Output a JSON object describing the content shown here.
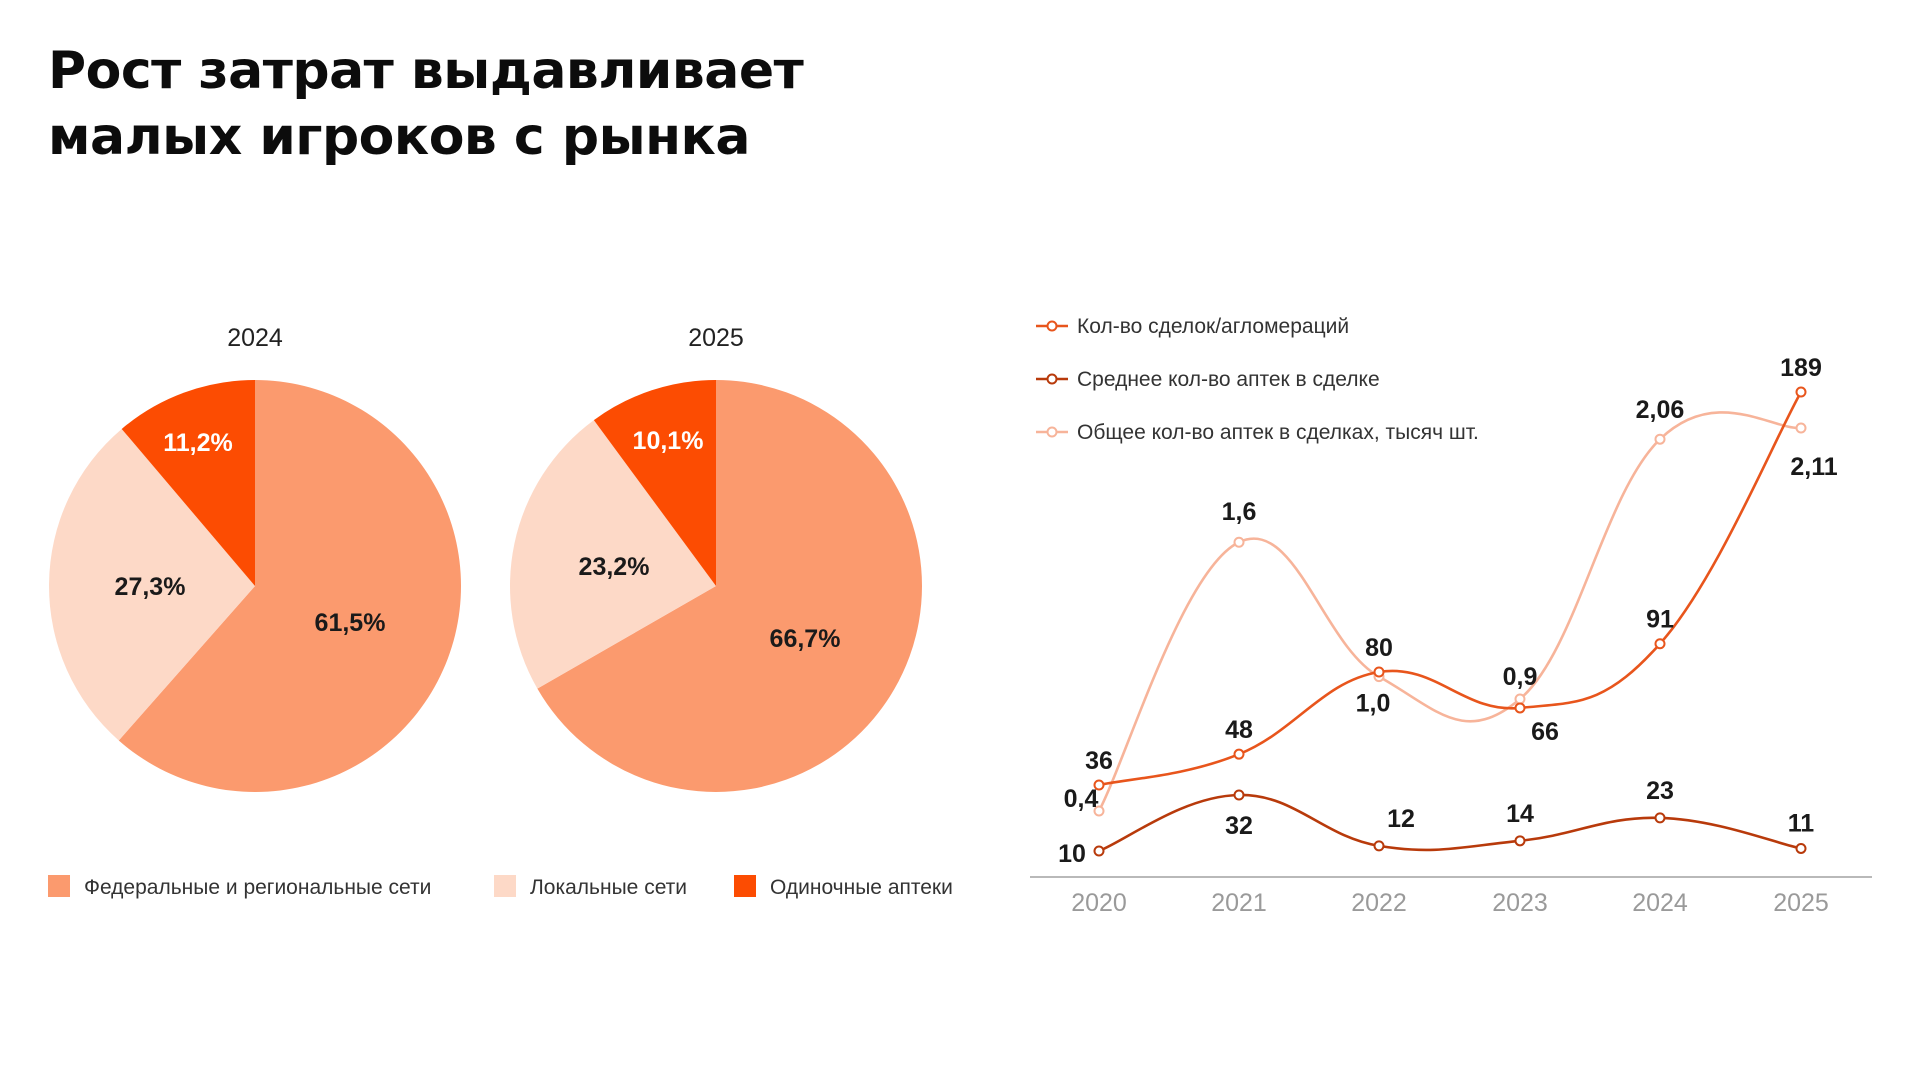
{
  "page": {
    "title_line1": "Рост затрат выдавливает",
    "title_line2": "малых игроков с рынка"
  },
  "chart_data": [
    {
      "type": "pie",
      "title": "2024",
      "slices": [
        {
          "label": "Федеральные и региональные сети",
          "value": 61.5,
          "text": "61,5%",
          "color": "#fb9a6e"
        },
        {
          "label": "Локальные сети",
          "value": 27.3,
          "text": "27,3%",
          "color": "#fdd9c7"
        },
        {
          "label": "Одиночные аптеки",
          "value": 11.2,
          "text": "11,2%",
          "color": "#fc4c02"
        }
      ]
    },
    {
      "type": "pie",
      "title": "2025",
      "slices": [
        {
          "label": "Федеральные и региональные сети",
          "value": 66.7,
          "text": "66,7%",
          "color": "#fb9a6e"
        },
        {
          "label": "Локальные сети",
          "value": 23.2,
          "text": "23,2%",
          "color": "#fdd9c7"
        },
        {
          "label": "Одиночные аптеки",
          "value": 10.1,
          "text": "10,1%",
          "color": "#fc4c02"
        }
      ]
    },
    {
      "type": "line",
      "x": [
        "2020",
        "2021",
        "2022",
        "2023",
        "2024",
        "2025"
      ],
      "grid": false,
      "legend_position": "top-left",
      "series": [
        {
          "name": "Кол-во сделок/агломераций",
          "color": "#e8551c",
          "values": [
            36,
            48,
            80,
            66,
            91,
            189
          ],
          "labels": [
            "36",
            "48",
            "80",
            "66",
            "91",
            "189"
          ]
        },
        {
          "name": "Среднее кол-во аптек в сделке",
          "color": "#b83a0b",
          "values": [
            10,
            32,
            12,
            14,
            23,
            11
          ],
          "labels": [
            "10",
            "32",
            "12",
            "14",
            "23",
            "11"
          ]
        },
        {
          "name": "Общее кол-во аптек в сделках, тысяч шт.",
          "color": "#f7b49a",
          "values": [
            0.4,
            1.6,
            1.0,
            0.9,
            2.06,
            2.11
          ],
          "labels": [
            "0,4",
            "1,6",
            "1,0",
            "0,9",
            "2,06",
            "2,11"
          ]
        }
      ]
    }
  ],
  "legend": {
    "items": [
      {
        "label": "Федеральные и региональные сети",
        "color": "#fb9a6e"
      },
      {
        "label": "Локальные сети",
        "color": "#fdd9c7"
      },
      {
        "label": "Одиночные аптеки",
        "color": "#fc4c02"
      }
    ]
  }
}
